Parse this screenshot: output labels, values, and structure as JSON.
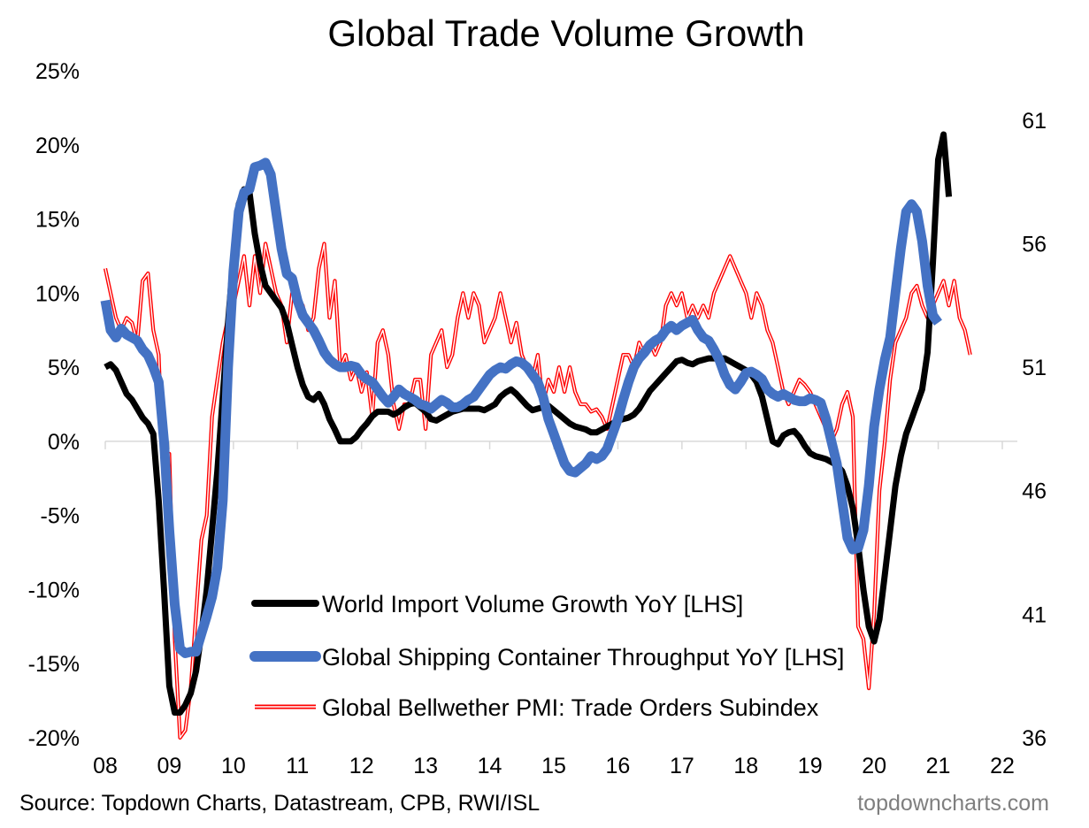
{
  "chart_data": {
    "type": "line",
    "title": "Global Trade Volume Growth",
    "source": "Source: Topdown Charts, Datastream, CPB, RWI/ISL",
    "brand": "topdowncharts.com",
    "x_start": 2008.0,
    "x_step": 0.08333,
    "x_ticks": [
      "08",
      "09",
      "10",
      "11",
      "12",
      "13",
      "14",
      "15",
      "16",
      "17",
      "18",
      "19",
      "20",
      "21",
      "22"
    ],
    "x_tick_values": [
      2008,
      2009,
      2010,
      2011,
      2012,
      2013,
      2014,
      2015,
      2016,
      2017,
      2018,
      2019,
      2020,
      2021,
      2022
    ],
    "y_left": {
      "range": [
        -20,
        25
      ],
      "ticks": [
        25,
        20,
        15,
        10,
        5,
        0,
        -5,
        -10,
        -15,
        -20
      ],
      "tick_labels": [
        "25%",
        "20%",
        "15%",
        "10%",
        "5%",
        "0%",
        "-5%",
        "-10%",
        "-15%",
        "-20%"
      ]
    },
    "y_right": {
      "range": [
        36,
        63
      ],
      "ticks": [
        61,
        56,
        51,
        46,
        41,
        36
      ],
      "tick_labels": [
        "61",
        "56",
        "51",
        "46",
        "41",
        "36"
      ]
    },
    "colors": {
      "black": "#000000",
      "blue": "#4472c4",
      "red": "#ff0000"
    },
    "series": [
      {
        "name": "World Import Volume Growth YoY [LHS]",
        "axis": "left",
        "color": "#000000",
        "values": [
          5.0,
          5.2,
          4.8,
          4.0,
          3.2,
          2.8,
          2.2,
          1.6,
          1.2,
          0.5,
          -4.0,
          -10.0,
          -16.5,
          -18.3,
          -18.3,
          -17.8,
          -17.0,
          -15.5,
          -13.0,
          -10.0,
          -6.0,
          -2.0,
          3.0,
          8.0,
          12.5,
          16.0,
          17.0,
          16.8,
          14.0,
          12.0,
          10.5,
          10.0,
          9.5,
          9.0,
          8.0,
          6.5,
          5.0,
          3.8,
          3.0,
          2.8,
          3.2,
          2.5,
          1.5,
          0.8,
          0.0,
          0.0,
          0.0,
          0.3,
          0.8,
          1.2,
          1.7,
          2.0,
          2.0,
          2.0,
          1.8,
          2.0,
          2.3,
          2.5,
          2.6,
          2.3,
          2.0,
          1.5,
          1.4,
          1.6,
          1.8,
          2.0,
          2.1,
          2.2,
          2.2,
          2.2,
          2.2,
          2.1,
          2.3,
          2.5,
          3.0,
          3.3,
          3.5,
          3.2,
          2.8,
          2.4,
          2.1,
          2.2,
          2.3,
          2.4,
          2.1,
          1.8,
          1.5,
          1.2,
          1.0,
          0.9,
          0.8,
          0.6,
          0.6,
          0.8,
          1.0,
          1.2,
          1.4,
          1.5,
          1.6,
          1.8,
          2.2,
          2.8,
          3.4,
          3.8,
          4.2,
          4.6,
          5.0,
          5.4,
          5.5,
          5.3,
          5.2,
          5.4,
          5.5,
          5.6,
          5.6,
          5.6,
          5.6,
          5.4,
          5.2,
          5.0,
          4.8,
          4.5,
          4.0,
          3.0,
          1.5,
          0.0,
          -0.2,
          0.4,
          0.6,
          0.7,
          0.3,
          -0.3,
          -0.8,
          -1.0,
          -1.1,
          -1.2,
          -1.4,
          -1.6,
          -2.0,
          -3.0,
          -4.5,
          -7.0,
          -10.0,
          -12.5,
          -13.5,
          -12.0,
          -9.0,
          -6.0,
          -3.0,
          -1.0,
          0.5,
          1.5,
          2.5,
          3.5,
          6.0,
          12.0,
          19.0,
          20.7,
          16.5
        ]
      },
      {
        "name": "Global Shipping Container Throughput YoY [LHS]",
        "axis": "left",
        "color": "#4472c4",
        "values": [
          9.5,
          7.5,
          7.0,
          7.6,
          7.2,
          7.0,
          6.8,
          6.2,
          5.8,
          5.0,
          4.0,
          0.0,
          -6.0,
          -11.0,
          -14.0,
          -14.3,
          -14.2,
          -14.2,
          -13.0,
          -11.8,
          -10.5,
          -8.5,
          -4.0,
          5.0,
          11.5,
          15.5,
          16.8,
          17.0,
          18.5,
          18.6,
          18.8,
          18.0,
          15.5,
          13.0,
          11.3,
          11.0,
          9.5,
          8.5,
          8.0,
          7.5,
          6.8,
          6.0,
          5.5,
          5.2,
          5.0,
          5.0,
          5.1,
          5.0,
          4.5,
          4.2,
          4.0,
          3.5,
          3.0,
          2.6,
          3.0,
          3.5,
          3.2,
          3.0,
          2.8,
          2.5,
          2.4,
          2.2,
          2.5,
          2.8,
          2.6,
          2.3,
          2.3,
          2.5,
          2.8,
          3.0,
          3.5,
          4.0,
          4.5,
          4.8,
          5.0,
          4.9,
          5.2,
          5.4,
          5.3,
          5.0,
          4.5,
          4.0,
          3.0,
          1.5,
          0.5,
          -0.5,
          -1.5,
          -2.0,
          -2.1,
          -1.8,
          -1.5,
          -1.0,
          -1.2,
          -1.0,
          -0.5,
          0.5,
          1.5,
          2.8,
          4.0,
          5.0,
          5.6,
          6.0,
          6.5,
          6.8,
          7.0,
          7.5,
          7.8,
          7.5,
          7.8,
          8.0,
          8.2,
          7.5,
          7.0,
          6.8,
          6.2,
          5.5,
          4.5,
          3.8,
          3.5,
          4.0,
          4.6,
          4.7,
          4.5,
          4.2,
          3.5,
          3.2,
          3.0,
          3.2,
          3.0,
          2.8,
          2.7,
          2.7,
          2.9,
          2.8,
          2.6,
          1.5,
          0.0,
          -1.5,
          -4.0,
          -6.5,
          -7.3,
          -7.2,
          -6.0,
          -3.0,
          1.0,
          3.5,
          5.5,
          7.0,
          10.0,
          13.0,
          15.5,
          16.0,
          15.5,
          13.5,
          10.5,
          8.5,
          8.0
        ]
      },
      {
        "name": "Global Bellwether PMI: Trade Orders Subindex",
        "axis": "right",
        "color": "#ff0000",
        "values": [
          55.0,
          54.0,
          53.0,
          52.5,
          53.0,
          52.8,
          52.0,
          54.5,
          54.8,
          52.5,
          51.5,
          46.0,
          47.5,
          40.0,
          36.0,
          36.3,
          38.0,
          41.0,
          44.0,
          45.0,
          49.0,
          50.5,
          52.0,
          53.0,
          53.5,
          54.5,
          55.5,
          53.5,
          55.5,
          54.0,
          56.0,
          55.0,
          54.0,
          53.5,
          52.0,
          54.0,
          53.8,
          53.5,
          52.5,
          53.0,
          55.0,
          56.0,
          53.0,
          54.5,
          51.0,
          51.5,
          50.5,
          51.0,
          50.0,
          50.8,
          49.0,
          52.0,
          52.5,
          51.5,
          49.5,
          48.5,
          49.5,
          49.5,
          50.5,
          50.5,
          48.5,
          51.5,
          52.0,
          52.5,
          51.0,
          51.5,
          53.0,
          54.0,
          53.0,
          54.0,
          53.5,
          52.0,
          52.5,
          53.0,
          54.0,
          53.0,
          52.0,
          52.8,
          51.5,
          51.0,
          50.5,
          51.5,
          49.5,
          50.5,
          50.0,
          51.0,
          50.0,
          51.0,
          50.0,
          49.5,
          49.5,
          49.2,
          49.3,
          49.0,
          48.5,
          49.5,
          50.5,
          51.5,
          51.5,
          51.0,
          52.0,
          51.5,
          52.0,
          51.5,
          52.0,
          53.5,
          54.0,
          53.5,
          54.0,
          53.0,
          53.5,
          53.0,
          53.5,
          53.0,
          54.0,
          54.5,
          55.0,
          55.5,
          55.0,
          54.5,
          54.0,
          53.0,
          54.0,
          53.5,
          52.5,
          52.0,
          51.0,
          50.0,
          49.5,
          50.0,
          50.5,
          50.3,
          50.0,
          49.5,
          49.0,
          48.5,
          48.0,
          48.5,
          49.5,
          50.0,
          49.0,
          40.5,
          40.0,
          38.0,
          41.0,
          46.0,
          48.0,
          50.5,
          52.0,
          52.5,
          53.0,
          54.0,
          54.3,
          53.5,
          53.0,
          53.5,
          54.0,
          54.5,
          53.5,
          54.5,
          53.0,
          52.5,
          51.5
        ]
      }
    ],
    "legend": [
      {
        "label": "World Import Volume Growth YoY [LHS]",
        "color": "#000000",
        "style": "thick"
      },
      {
        "label": "Global Shipping Container Throughput YoY [LHS]",
        "color": "#4472c4",
        "style": "thicker"
      },
      {
        "label": "Global Bellwether PMI: Trade Orders Subindex",
        "color": "#ff0000",
        "style": "double"
      }
    ]
  }
}
